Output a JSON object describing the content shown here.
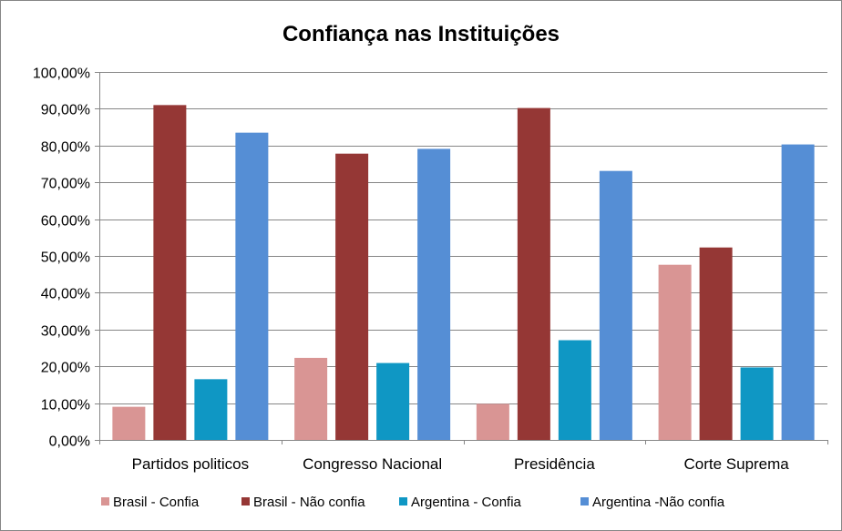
{
  "chart_data": {
    "type": "bar",
    "title": "Confiança nas Instituições",
    "xlabel": "",
    "ylabel": "",
    "ylim": [
      0,
      100
    ],
    "y_ticks": [
      "0,00%",
      "10,00%",
      "20,00%",
      "30,00%",
      "40,00%",
      "50,00%",
      "60,00%",
      "70,00%",
      "80,00%",
      "90,00%",
      "100,00%"
    ],
    "grid": true,
    "legend_position": "bottom",
    "categories": [
      "Partidos politicos",
      "Congresso Nacional",
      "Presidência",
      "Corte Suprema"
    ],
    "series": [
      {
        "name": "Brasil - Confia",
        "color": "#d99594",
        "values": [
          9.0,
          22.3,
          9.8,
          47.6
        ]
      },
      {
        "name": "Brasil - Não confia",
        "color": "#953735",
        "values": [
          91.0,
          77.8,
          90.2,
          52.3
        ]
      },
      {
        "name": "Argentina - Confia",
        "color": "#0f97c4",
        "values": [
          16.5,
          20.9,
          27.1,
          19.7
        ]
      },
      {
        "name": "Argentina -Não confia",
        "color": "#558ed5",
        "values": [
          83.5,
          79.1,
          73.1,
          80.3
        ]
      }
    ]
  }
}
